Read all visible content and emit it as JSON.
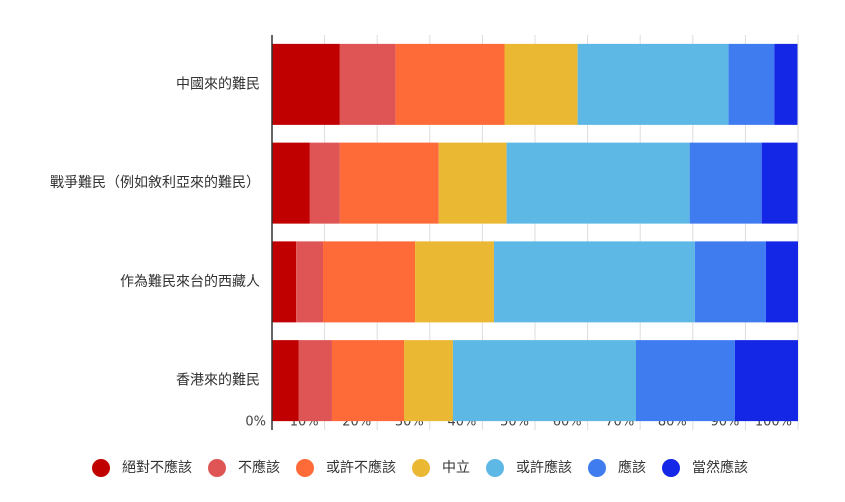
{
  "chart_data": {
    "type": "stacked-bar-horizontal",
    "categories": [
      "中國來的難民",
      "戰爭難民（例如敘利亞來的難民）",
      "作為難民來台的西藏人",
      "香港來的難民"
    ],
    "series": [
      {
        "name": "絕對不應該",
        "color": "#c00000",
        "values": [
          12.9,
          7.2,
          4.6,
          5.1
        ]
      },
      {
        "name": "不應該",
        "color": "#df5555",
        "values": [
          10.6,
          5.7,
          5.1,
          6.3
        ]
      },
      {
        "name": "或許不應該",
        "color": "#ff6a39",
        "values": [
          20.7,
          18.8,
          17.5,
          13.7
        ]
      },
      {
        "name": "中立",
        "color": "#ebb833",
        "values": [
          13.9,
          12.9,
          15.0,
          9.3
        ]
      },
      {
        "name": "或許應該",
        "color": "#5eb8e5",
        "values": [
          28.7,
          34.8,
          38.2,
          34.8
        ]
      },
      {
        "name": "應該",
        "color": "#3e7cf0",
        "values": [
          8.7,
          13.7,
          13.5,
          18.8
        ]
      },
      {
        "name": "當然應該",
        "color": "#1426e6",
        "values": [
          4.4,
          6.8,
          6.1,
          12.0
        ]
      }
    ],
    "xlim": [
      0,
      100
    ],
    "xticks": [
      {
        "value": 0,
        "label": "0%"
      },
      {
        "value": 10,
        "label": "10%"
      },
      {
        "value": 20,
        "label": "20%"
      },
      {
        "value": 30,
        "label": "30%"
      },
      {
        "value": 40,
        "label": "40%"
      },
      {
        "value": 50,
        "label": "50%"
      },
      {
        "value": 60,
        "label": "60%"
      },
      {
        "value": 70,
        "label": "70%"
      },
      {
        "value": 80,
        "label": "80%"
      },
      {
        "value": 90,
        "label": "90%"
      },
      {
        "value": 100,
        "label": "100%"
      }
    ],
    "grid": true,
    "legend": "bottom"
  }
}
